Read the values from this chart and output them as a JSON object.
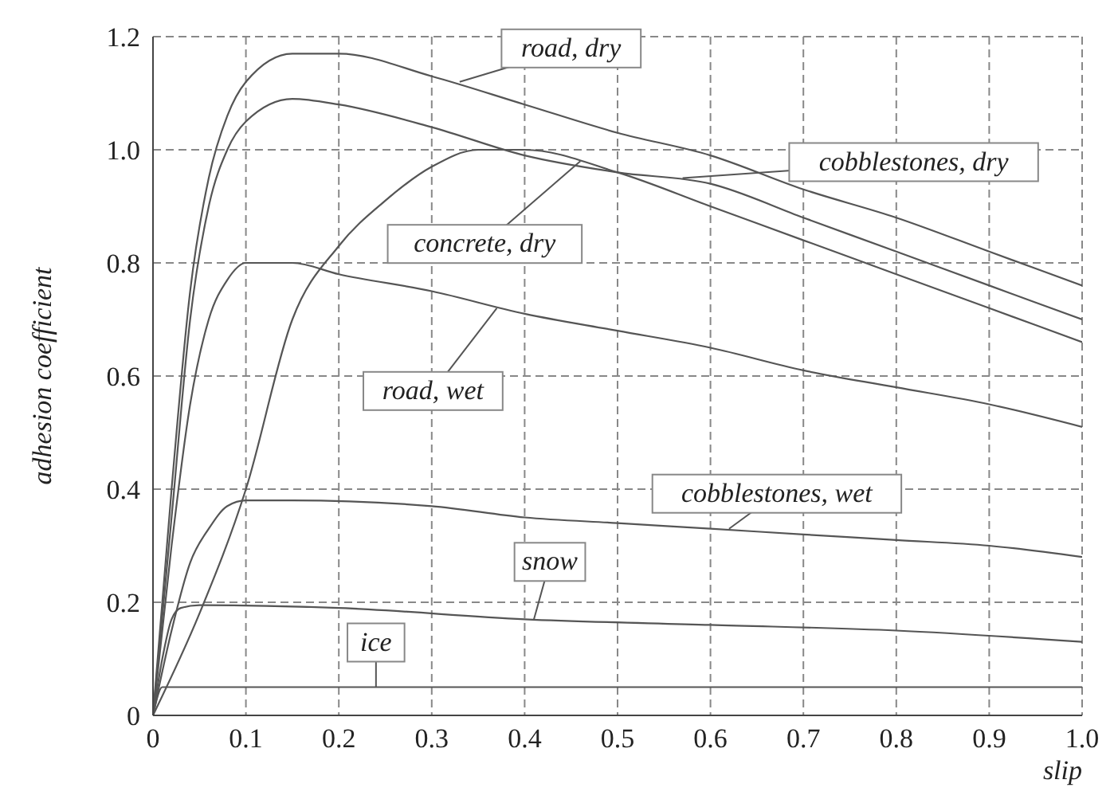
{
  "chart_data": {
    "type": "line",
    "xlabel": "slip",
    "ylabel": "adhesion coefficient",
    "xlim": [
      0,
      1
    ],
    "ylim": [
      0,
      1.2
    ],
    "xticks": [
      0,
      {
        "value": 0.1,
        "label": "0.1"
      },
      {
        "value": 0.2,
        "label": "0.2"
      },
      {
        "value": 0.3,
        "label": "0.3"
      },
      {
        "value": 0.4,
        "label": "0.4"
      },
      {
        "value": 0.5,
        "label": "0.5"
      },
      {
        "value": 0.6,
        "label": "0.6"
      },
      {
        "value": 0.7,
        "label": "0.7"
      },
      {
        "value": 0.8,
        "label": "0.8"
      },
      {
        "value": 0.9,
        "label": "0.9"
      },
      {
        "value": 1,
        "label": "1.0"
      }
    ],
    "yticks": [
      0,
      {
        "value": 0.2,
        "label": "0.2"
      },
      {
        "value": 0.4,
        "label": "0.4"
      },
      {
        "value": 0.6,
        "label": "0.6"
      },
      {
        "value": 0.8,
        "label": "0.8"
      },
      {
        "value": 1,
        "label": "1.0"
      },
      {
        "value": 1.2,
        "label": "1.2"
      }
    ],
    "grid": true,
    "legend": false,
    "marker": "none",
    "line_style": "solid",
    "series": [
      {
        "color": "#555555",
        "x": [
          0,
          0.02,
          0.04,
          0.06,
          0.08,
          0.1,
          0.15,
          0.2,
          0.3,
          0.4,
          0.5,
          0.6,
          0.7,
          0.8,
          0.9,
          1
        ],
        "values": [
          0,
          0.4,
          0.75,
          0.95,
          1.06,
          1.12,
          1.17,
          1.17,
          1.13,
          1.08,
          1.03,
          0.99,
          0.93,
          0.88,
          0.82,
          0.76
        ]
      },
      {
        "color": "#555555",
        "x": [
          0,
          0.02,
          0.04,
          0.06,
          0.08,
          0.1,
          0.15,
          0.2,
          0.3,
          0.4,
          0.5,
          0.6,
          0.7,
          0.8,
          0.9,
          1
        ],
        "values": [
          0,
          0.35,
          0.7,
          0.9,
          1,
          1.05,
          1.09,
          1.08,
          1.04,
          0.99,
          0.96,
          0.94,
          0.88,
          0.82,
          0.76,
          0.7
        ]
      },
      {
        "color": "#555555",
        "x": [
          0,
          0.05,
          0.1,
          0.15,
          0.2,
          0.25,
          0.3,
          0.35,
          0.4,
          0.5,
          0.6,
          0.7,
          0.8,
          0.9,
          1
        ],
        "values": [
          0,
          0.18,
          0.4,
          0.7,
          0.83,
          0.91,
          0.97,
          1,
          1,
          0.96,
          0.9,
          0.84,
          0.78,
          0.72,
          0.66
        ]
      },
      {
        "color": "#555555",
        "x": [
          0,
          0.02,
          0.04,
          0.06,
          0.08,
          0.1,
          0.15,
          0.2,
          0.3,
          0.4,
          0.5,
          0.6,
          0.7,
          0.8,
          0.9,
          1
        ],
        "values": [
          0,
          0.3,
          0.55,
          0.7,
          0.77,
          0.8,
          0.8,
          0.78,
          0.75,
          0.71,
          0.68,
          0.65,
          0.61,
          0.58,
          0.55,
          0.51
        ]
      },
      {
        "color": "#555555",
        "x": [
          0,
          0.02,
          0.04,
          0.06,
          0.08,
          0.1,
          0.15,
          0.3,
          0.4,
          0.5,
          0.6,
          0.7,
          0.8,
          0.9,
          1
        ],
        "values": [
          0,
          0.15,
          0.27,
          0.33,
          0.37,
          0.38,
          0.38,
          0.37,
          0.35,
          0.34,
          0.33,
          0.32,
          0.31,
          0.3,
          0.28
        ]
      },
      {
        "color": "#555555",
        "x": [
          0,
          0.01,
          0.02,
          0.03,
          0.05,
          0.2,
          0.4,
          0.6,
          0.8,
          1
        ],
        "values": [
          0,
          0.1,
          0.17,
          0.19,
          0.195,
          0.19,
          0.17,
          0.16,
          0.15,
          0.13
        ]
      },
      {
        "color": "#555555",
        "x": [
          0,
          0.01,
          1
        ],
        "values": [
          0,
          0.05,
          0.05
        ]
      }
    ],
    "annotations": [
      {
        "text": "road, dry",
        "x": 0.33,
        "y": 1.12
      },
      {
        "text": "cobblestones, dry",
        "x": 0.57,
        "y": 0.95
      },
      {
        "text": "concrete, dry",
        "x": 0.46,
        "y": 0.98
      },
      {
        "text": "road, wet",
        "x": 0.37,
        "y": 0.72
      },
      {
        "text": "cobblestones, wet",
        "x": 0.62,
        "y": 0.33
      },
      {
        "text": "snow",
        "x": 0.41,
        "y": 0.17
      },
      {
        "text": "ice",
        "x": 0.24,
        "y": 0.05
      }
    ]
  }
}
